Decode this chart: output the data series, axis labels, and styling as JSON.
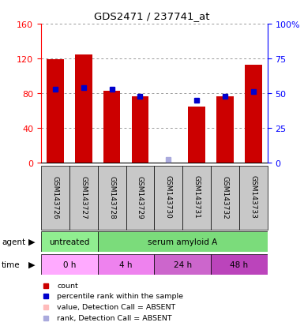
{
  "title": "GDS2471 / 237741_at",
  "samples": [
    "GSM143726",
    "GSM143727",
    "GSM143728",
    "GSM143729",
    "GSM143730",
    "GSM143731",
    "GSM143732",
    "GSM143733"
  ],
  "count_values": [
    119,
    125,
    83,
    76,
    0,
    65,
    76,
    113
  ],
  "percentile_values": [
    53,
    54,
    53,
    48,
    2,
    45,
    48,
    51
  ],
  "absent_count": [
    false,
    false,
    false,
    false,
    true,
    false,
    false,
    false
  ],
  "absent_rank": [
    false,
    false,
    false,
    false,
    true,
    false,
    false,
    false
  ],
  "ylim_left": [
    0,
    160
  ],
  "ylim_right": [
    0,
    100
  ],
  "yticks_left": [
    0,
    40,
    80,
    120,
    160
  ],
  "ytick_labels_left": [
    "0",
    "40",
    "80",
    "120",
    "160"
  ],
  "yticks_right": [
    0,
    25,
    50,
    75,
    100
  ],
  "ytick_labels_right": [
    "0",
    "25",
    "50",
    "75",
    "100%"
  ],
  "agent_labels": [
    {
      "label": "untreated",
      "start": 0,
      "end": 2,
      "color": "#90EE90"
    },
    {
      "label": "serum amyloid A",
      "start": 2,
      "end": 8,
      "color": "#7BDC7B"
    }
  ],
  "time_labels": [
    {
      "label": "0 h",
      "start": 0,
      "end": 2,
      "color": "#FFAAFF"
    },
    {
      "label": "4 h",
      "start": 2,
      "end": 4,
      "color": "#EE82EE"
    },
    {
      "label": "24 h",
      "start": 4,
      "end": 6,
      "color": "#CC66CC"
    },
    {
      "label": "48 h",
      "start": 6,
      "end": 8,
      "color": "#BB44BB"
    }
  ],
  "bar_color": "#CC0000",
  "dot_color_present": "#0000CC",
  "dot_color_absent_rank": "#AAAADD",
  "dot_color_absent_val": "#FFBBBB",
  "bar_width": 0.6,
  "grid_color": "#999999",
  "bg_color": "#FFFFFF",
  "sample_bg_color": "#C8C8C8",
  "fig_width": 3.85,
  "fig_height": 4.14,
  "dpi": 100
}
